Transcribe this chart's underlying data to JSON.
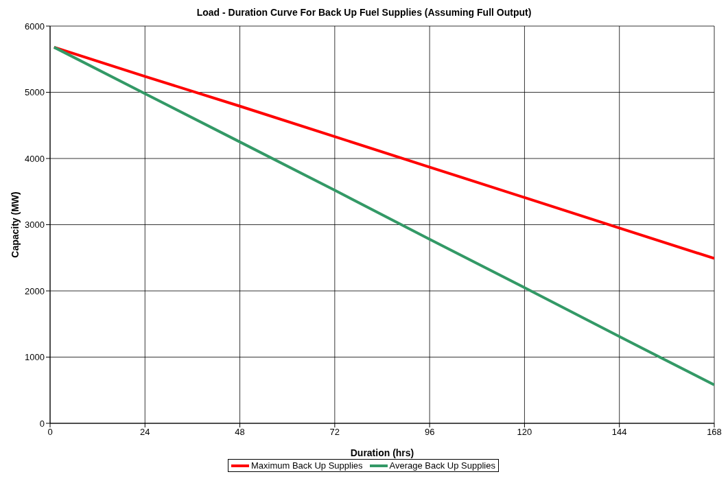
{
  "chart_data": {
    "type": "line",
    "title": "Load - Duration Curve For Back Up Fuel Supplies (Assuming Full Output)",
    "xlabel": "Duration (hrs)",
    "ylabel": "Capacity (MW)",
    "x": [
      1,
      24,
      48,
      72,
      96,
      120,
      144,
      168
    ],
    "series": [
      {
        "name": "Maximum Back Up Supplies",
        "color": "#ff0000",
        "values": [
          5680,
          5240,
          4790,
          4330,
          3870,
          3410,
          2950,
          2490
        ]
      },
      {
        "name": "Average Back Up Supplies",
        "color": "#339966",
        "values": [
          5680,
          4980,
          4250,
          3520,
          2780,
          2050,
          1310,
          580
        ]
      }
    ],
    "xlim": [
      0,
      168
    ],
    "xticks": [
      0,
      24,
      48,
      72,
      96,
      120,
      144,
      168
    ],
    "ylim": [
      0,
      6000
    ],
    "yticks": [
      0,
      1000,
      2000,
      3000,
      4000,
      5000,
      6000
    ],
    "grid": true,
    "legend": "bottom",
    "marker": "none",
    "line_style": "solid"
  }
}
